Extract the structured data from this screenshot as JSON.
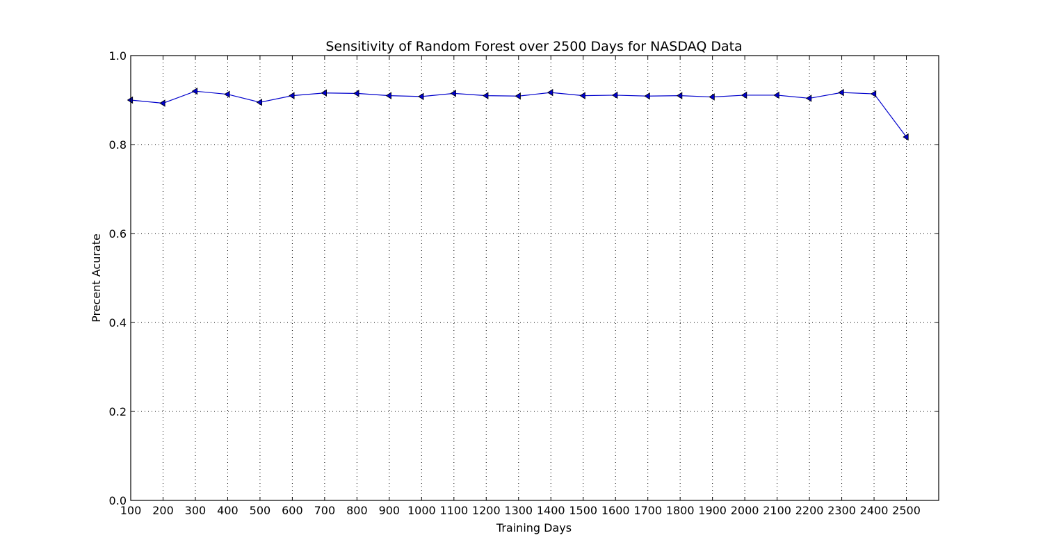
{
  "chart_data": {
    "type": "line",
    "title": "Sensitivity of Random Forest over 2500 Days for NASDAQ Data",
    "xlabel": "Training Days",
    "ylabel": "Precent Acurate",
    "xlim": [
      100,
      2600
    ],
    "ylim": [
      0.0,
      1.0
    ],
    "x_ticks": [
      100,
      200,
      300,
      400,
      500,
      600,
      700,
      800,
      900,
      1000,
      1100,
      1200,
      1300,
      1400,
      1500,
      1600,
      1700,
      1800,
      1900,
      2000,
      2100,
      2200,
      2300,
      2400,
      2500
    ],
    "y_ticks": [
      0.0,
      0.2,
      0.4,
      0.6,
      0.8,
      1.0
    ],
    "y_tick_labels": [
      "0.0",
      "0.2",
      "0.4",
      "0.6",
      "0.8",
      "1.0"
    ],
    "grid": true,
    "marker": "left-triangle",
    "series": [
      {
        "color": "#0000cc",
        "x": [
          100,
          200,
          300,
          400,
          500,
          600,
          700,
          800,
          900,
          1000,
          1100,
          1200,
          1300,
          1400,
          1500,
          1600,
          1700,
          1800,
          1900,
          2000,
          2100,
          2200,
          2300,
          2400,
          2500
        ],
        "y": [
          0.9,
          0.893,
          0.92,
          0.913,
          0.895,
          0.91,
          0.916,
          0.915,
          0.91,
          0.908,
          0.915,
          0.91,
          0.909,
          0.917,
          0.91,
          0.911,
          0.909,
          0.91,
          0.907,
          0.911,
          0.911,
          0.904,
          0.917,
          0.914,
          0.817
        ]
      }
    ]
  }
}
